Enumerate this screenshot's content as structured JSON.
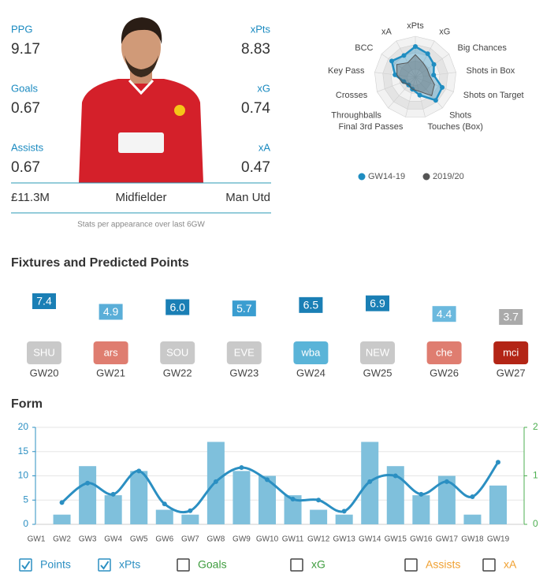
{
  "player": {
    "stats": [
      {
        "label": "PPG",
        "value": 9.17
      },
      {
        "label": "xPts",
        "value": 8.83
      },
      {
        "label": "Goals",
        "value": 0.67
      },
      {
        "label": "xG",
        "value": 0.74
      },
      {
        "label": "Assists",
        "value": 0.67
      },
      {
        "label": "xA",
        "value": 0.47
      }
    ],
    "price": "£11.3M",
    "position": "Midfielder",
    "team": "Man Utd",
    "note": "Stats per appearance over last 6GW"
  },
  "fixtures": {
    "title": "Fixtures and Predicted Points",
    "items": [
      {
        "points": 7.4,
        "points_label": "7.4",
        "opponent": "SHU",
        "gameweek": "GW20",
        "color": "#1a7fb5",
        "badge_color": "#c9c9c9"
      },
      {
        "points": 4.9,
        "points_label": "4.9",
        "opponent": "ars",
        "gameweek": "GW21",
        "color": "#5aaed8",
        "badge_color": "#df7d70"
      },
      {
        "points": 6,
        "points_label": "6.0",
        "opponent": "SOU",
        "gameweek": "GW22",
        "color": "#1a7fb5",
        "badge_color": "#c9c9c9"
      },
      {
        "points": 5.7,
        "points_label": "5.7",
        "opponent": "EVE",
        "gameweek": "GW23",
        "color": "#3a9dd0",
        "badge_color": "#c9c9c9"
      },
      {
        "points": 6.5,
        "points_label": "6.5",
        "opponent": "wba",
        "gameweek": "GW24",
        "color": "#1a7fb5",
        "badge_color": "#5ab4d8"
      },
      {
        "points": 6.9,
        "points_label": "6.9",
        "opponent": "NEW",
        "gameweek": "GW25",
        "color": "#1a7fb5",
        "badge_color": "#c9c9c9"
      },
      {
        "points": 4.4,
        "points_label": "4.4",
        "opponent": "che",
        "gameweek": "GW26",
        "color": "#6bb9de",
        "badge_color": "#df7d70"
      },
      {
        "points": 3.7,
        "points_label": "3.7",
        "opponent": "mci",
        "gameweek": "GW27",
        "color": "#aaaaaa",
        "badge_color": "#b32516"
      }
    ]
  },
  "chart_data": [
    {
      "type": "radar",
      "axes": [
        "xPts",
        "xG",
        "Big Chances",
        "Shots in Box",
        "Shots on Target",
        "Shots",
        "Touches (Box)",
        "Final 3rd Passes",
        "Throughballs",
        "Crosses",
        "Key Pass",
        "BCC",
        "xA"
      ],
      "rlim": [
        0,
        100
      ],
      "series": [
        {
          "name": "GW14-19",
          "color": "#1f8dc1",
          "values": [
            75,
            65,
            55,
            45,
            70,
            75,
            45,
            30,
            25,
            30,
            50,
            70,
            60
          ]
        },
        {
          "name": "2019/20",
          "color": "#555555",
          "values": [
            55,
            40,
            35,
            35,
            50,
            60,
            35,
            30,
            25,
            35,
            45,
            55,
            40
          ]
        }
      ]
    },
    {
      "type": "bar",
      "title": "Form",
      "categories": [
        "GW1",
        "GW2",
        "GW3",
        "GW4",
        "GW5",
        "GW6",
        "GW7",
        "GW8",
        "GW9",
        "GW10",
        "GW11",
        "GW12",
        "GW13",
        "GW14",
        "GW15",
        "GW16",
        "GW17",
        "GW18",
        "GW19"
      ],
      "ylim": [
        0,
        20
      ],
      "yticks": [
        0,
        5,
        10,
        15,
        20
      ],
      "y2lim": [
        0,
        2
      ],
      "y2ticks": [
        0,
        1,
        2
      ],
      "grid": true,
      "series": [
        {
          "name": "Points",
          "type": "bar",
          "color": "#7fc0dc",
          "values": [
            null,
            2,
            12,
            6,
            11,
            3,
            2,
            17,
            11,
            10,
            6,
            3,
            2,
            17,
            12,
            6,
            10,
            2,
            8
          ]
        },
        {
          "name": "xPts",
          "type": "line",
          "axis": "y2",
          "color": "#2b8fc2",
          "values": [
            null,
            0.45,
            0.85,
            0.62,
            1.1,
            0.42,
            0.28,
            0.88,
            1.17,
            0.92,
            0.52,
            0.5,
            0.27,
            0.88,
            1.0,
            0.62,
            0.88,
            0.57,
            1.28
          ]
        }
      ],
      "toggles": [
        {
          "name": "Points",
          "color": "#2b8fc2",
          "checked": true
        },
        {
          "name": "xPts",
          "color": "#2b8fc2",
          "checked": true
        },
        {
          "name": "Goals",
          "color": "#3d9c3d",
          "checked": false
        },
        {
          "name": "xG",
          "color": "#3d9c3d",
          "checked": false
        },
        {
          "name": "Assists",
          "color": "#f0a030",
          "checked": false
        },
        {
          "name": "xA",
          "color": "#f0a030",
          "checked": false
        }
      ]
    }
  ]
}
